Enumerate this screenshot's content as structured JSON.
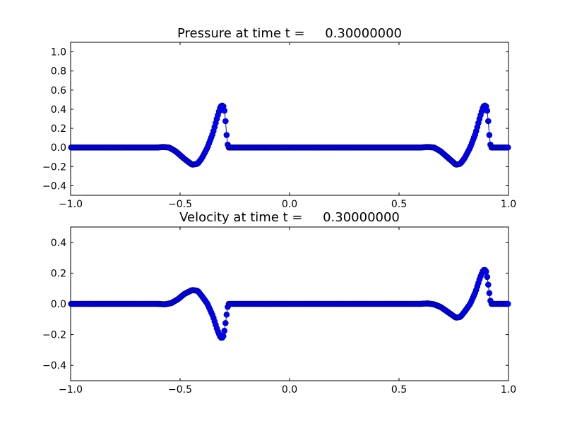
{
  "chart_data": [
    {
      "type": "line",
      "title": "Pressure at time t =     0.30000000",
      "xlabel": "",
      "ylabel": "",
      "xlim": [
        -1.0,
        1.0
      ],
      "ylim": [
        -0.5,
        1.1
      ],
      "xticks": [
        -1.0,
        -0.5,
        0.0,
        0.5,
        1.0
      ],
      "xtick_labels": [
        "−1.0",
        "−0.5",
        "0.0",
        "0.5",
        "1.0"
      ],
      "yticks": [
        -0.4,
        -0.2,
        0.0,
        0.2,
        0.4,
        0.6,
        0.8,
        1.0
      ],
      "ytick_labels": [
        "−0.4",
        "−0.2",
        "0.0",
        "0.2",
        "0.4",
        "0.6",
        "0.8",
        "1.0"
      ],
      "grid": false,
      "series": [
        {
          "marker": "circle",
          "color": "#0000ff",
          "marker_edge": "#000080",
          "points": [
            [
              -1.0,
              0.0
            ],
            [
              -0.6,
              0.0
            ],
            [
              -0.58,
              0.005
            ],
            [
              -0.55,
              0.0
            ],
            [
              -0.52,
              -0.04
            ],
            [
              -0.48,
              -0.12
            ],
            [
              -0.445,
              -0.18
            ],
            [
              -0.42,
              -0.17
            ],
            [
              -0.4,
              -0.11
            ],
            [
              -0.375,
              0.0
            ],
            [
              -0.35,
              0.15
            ],
            [
              -0.33,
              0.32
            ],
            [
              -0.315,
              0.43
            ],
            [
              -0.305,
              0.44
            ],
            [
              -0.3,
              0.42
            ],
            [
              -0.295,
              0.35
            ],
            [
              -0.29,
              0.2
            ],
            [
              -0.285,
              0.06
            ],
            [
              -0.28,
              0.0
            ],
            [
              0.6,
              0.0
            ],
            [
              0.63,
              0.005
            ],
            [
              0.66,
              0.0
            ],
            [
              0.69,
              -0.04
            ],
            [
              0.73,
              -0.12
            ],
            [
              0.76,
              -0.18
            ],
            [
              0.78,
              -0.17
            ],
            [
              0.8,
              -0.11
            ],
            [
              0.825,
              0.0
            ],
            [
              0.85,
              0.15
            ],
            [
              0.87,
              0.32
            ],
            [
              0.885,
              0.43
            ],
            [
              0.895,
              0.44
            ],
            [
              0.9,
              0.42
            ],
            [
              0.905,
              0.35
            ],
            [
              0.91,
              0.2
            ],
            [
              0.915,
              0.06
            ],
            [
              0.92,
              0.0
            ],
            [
              1.0,
              0.0
            ]
          ]
        }
      ]
    },
    {
      "type": "line",
      "title": "Velocity at time t =     0.30000000",
      "xlabel": "",
      "ylabel": "",
      "xlim": [
        -1.0,
        1.0
      ],
      "ylim": [
        -0.5,
        0.5
      ],
      "xticks": [
        -1.0,
        -0.5,
        0.0,
        0.5,
        1.0
      ],
      "xtick_labels": [
        "−1.0",
        "−0.5",
        "0.0",
        "0.5",
        "1.0"
      ],
      "yticks": [
        -0.4,
        -0.2,
        0.0,
        0.2,
        0.4
      ],
      "ytick_labels": [
        "−0.4",
        "−0.2",
        "0.0",
        "0.2",
        "0.4"
      ],
      "grid": false,
      "series": [
        {
          "marker": "circle",
          "color": "#0000ff",
          "marker_edge": "#000080",
          "points": [
            [
              -1.0,
              0.0
            ],
            [
              -0.6,
              0.0
            ],
            [
              -0.57,
              -0.003
            ],
            [
              -0.54,
              0.005
            ],
            [
              -0.51,
              0.03
            ],
            [
              -0.48,
              0.065
            ],
            [
              -0.445,
              0.09
            ],
            [
              -0.42,
              0.085
            ],
            [
              -0.4,
              0.05
            ],
            [
              -0.375,
              0.0
            ],
            [
              -0.35,
              -0.08
            ],
            [
              -0.33,
              -0.17
            ],
            [
              -0.315,
              -0.22
            ],
            [
              -0.305,
              -0.22
            ],
            [
              -0.3,
              -0.2
            ],
            [
              -0.295,
              -0.15
            ],
            [
              -0.29,
              -0.1
            ],
            [
              -0.285,
              -0.04
            ],
            [
              -0.28,
              0.0
            ],
            [
              0.6,
              0.0
            ],
            [
              0.63,
              0.003
            ],
            [
              0.66,
              -0.003
            ],
            [
              0.69,
              -0.02
            ],
            [
              0.73,
              -0.06
            ],
            [
              0.76,
              -0.09
            ],
            [
              0.78,
              -0.085
            ],
            [
              0.8,
              -0.05
            ],
            [
              0.825,
              0.0
            ],
            [
              0.85,
              0.08
            ],
            [
              0.87,
              0.17
            ],
            [
              0.885,
              0.22
            ],
            [
              0.895,
              0.22
            ],
            [
              0.9,
              0.2
            ],
            [
              0.905,
              0.15
            ],
            [
              0.91,
              0.1
            ],
            [
              0.915,
              0.04
            ],
            [
              0.92,
              0.0
            ],
            [
              1.0,
              0.0
            ]
          ]
        }
      ]
    }
  ]
}
